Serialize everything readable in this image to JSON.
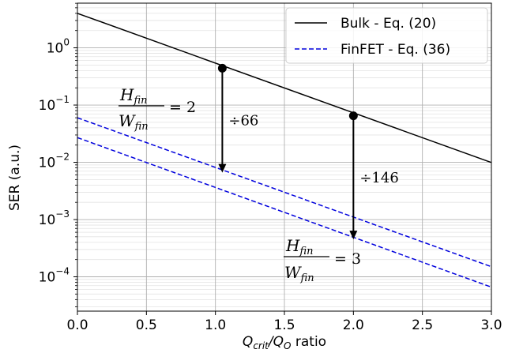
{
  "chart_data": {
    "type": "line",
    "xlabel": {
      "main": "Q",
      "sub1": "crit",
      "slash": "/",
      "main2": "Q",
      "sub2": "O",
      "rest": " ratio"
    },
    "ylabel": "SER (a.u.)",
    "xlim": [
      0.0,
      3.0
    ],
    "ylim_log10": [
      -4.6,
      0.78
    ],
    "y_scale": "log",
    "grid": true,
    "minor_grid": true,
    "legend_position": "top-right",
    "x_ticks": [
      "0.0",
      "0.5",
      "1.0",
      "1.5",
      "2.0",
      "2.5",
      "3.0"
    ],
    "x_tick_values": [
      0.0,
      0.5,
      1.0,
      1.5,
      2.0,
      2.5,
      3.0
    ],
    "y_ticks": [
      {
        "base": "10",
        "exp": "0",
        "value": 0
      },
      {
        "base": "10",
        "exp": "−1",
        "value": -1
      },
      {
        "base": "10",
        "exp": "−2",
        "value": -2
      },
      {
        "base": "10",
        "exp": "−3",
        "value": -3
      },
      {
        "base": "10",
        "exp": "−4",
        "value": -4
      }
    ],
    "series": [
      {
        "name": "Bulk - Eq. (20)",
        "color": "#000000",
        "dash": "solid",
        "x": [
          0.0,
          3.0
        ],
        "y": [
          4.0,
          0.0099
        ]
      },
      {
        "name": "FinFET - Eq. (36)",
        "color": "#0000dd",
        "dash": "dashed",
        "x": [
          0.0,
          3.0
        ],
        "y": [
          0.06,
          0.00015
        ]
      },
      {
        "name": "",
        "color": "#0000dd",
        "dash": "dashed",
        "x": [
          0.0,
          3.0
        ],
        "y": [
          0.027,
          6.6e-05
        ]
      }
    ],
    "markers": [
      {
        "x": 1.05,
        "y": 0.44
      },
      {
        "x": 2.0,
        "y": 0.065
      }
    ],
    "arrows": [
      {
        "x": 1.05,
        "y_from": 0.44,
        "y_to": 0.0066,
        "label": "÷66"
      },
      {
        "x": 2.0,
        "y_from": 0.065,
        "y_to": 0.00045,
        "label": "÷146"
      }
    ],
    "annotations": [
      {
        "numerator": "H",
        "num_sub": "fin",
        "denominator": "W",
        "den_sub": "fin",
        "rhs": "= 2"
      },
      {
        "numerator": "H",
        "num_sub": "fin",
        "denominator": "W",
        "den_sub": "fin",
        "rhs": "= 3"
      }
    ]
  }
}
